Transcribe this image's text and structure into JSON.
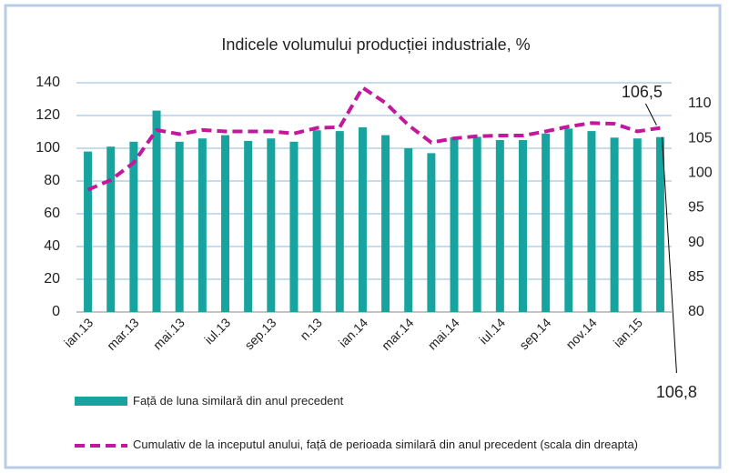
{
  "chart_data": {
    "type": "bar_line",
    "title": "Indicele volumului producției industriale, %",
    "categories": [
      "ian.13",
      null,
      "mar.13",
      null,
      "mai.13",
      null,
      "iul.13",
      null,
      "sep.13",
      null,
      "n.13",
      null,
      "ian.14",
      null,
      "mar.14",
      null,
      "mai.14",
      null,
      "iul.14",
      null,
      "sep.14",
      null,
      "nov.14",
      null,
      "ian.15",
      null
    ],
    "series": [
      {
        "name": "Față de luna similară din anul precedent",
        "type": "bar",
        "color": "#17a39e",
        "values": [
          98,
          101,
          104,
          123,
          104,
          106,
          108,
          104.5,
          106,
          104,
          111,
          110.5,
          112.8,
          108,
          100,
          97,
          106.7,
          107,
          105,
          105,
          109,
          112,
          110.5,
          106.5,
          106,
          106.8
        ],
        "value_labels": [
          null,
          null,
          null,
          null,
          null,
          null,
          null,
          null,
          null,
          null,
          null,
          null,
          null,
          null,
          null,
          null,
          null,
          null,
          null,
          null,
          null,
          null,
          null,
          null,
          null,
          "106,8"
        ]
      },
      {
        "name": "Cumulativ de la inceputul anului, față de perioada similară din anul precedent (scala din dreapta)",
        "type": "line",
        "axis": "y2",
        "color": "#c2189c",
        "values": [
          97.6,
          99,
          101.5,
          106.2,
          105.6,
          106.2,
          106,
          106,
          106,
          105.7,
          106.5,
          106.6,
          112.3,
          110.1,
          106.9,
          104.4,
          105,
          105.3,
          105.4,
          105.4,
          106,
          106.7,
          107.2,
          107.1,
          106,
          106.5
        ],
        "value_labels": [
          null,
          null,
          null,
          null,
          null,
          null,
          null,
          null,
          null,
          null,
          null,
          null,
          null,
          null,
          null,
          null,
          null,
          null,
          null,
          null,
          null,
          null,
          null,
          null,
          null,
          "106,5"
        ]
      }
    ],
    "ylim": [
      0,
      140
    ],
    "yticks": [
      0,
      20,
      40,
      60,
      80,
      100,
      120,
      140
    ],
    "y2lim": [
      80,
      113
    ],
    "y2ticks": [
      80,
      85,
      90,
      95,
      100,
      105,
      110
    ],
    "grid": true
  }
}
